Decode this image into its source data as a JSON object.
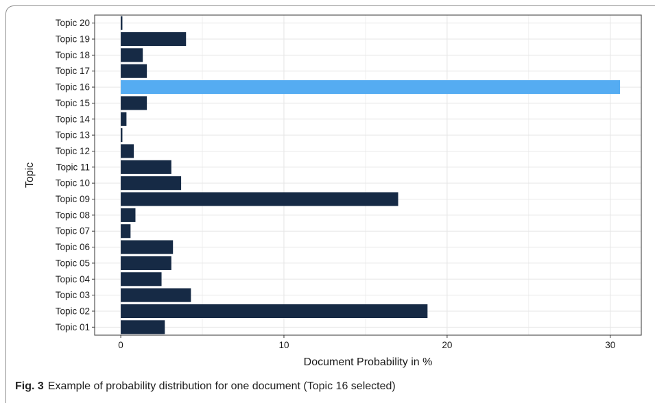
{
  "caption": {
    "label": "Fig. 3",
    "text": "Example of probability distribution for one document (Topic 16 selected)"
  },
  "colors": {
    "bar": "#162a45",
    "highlight": "#55acf2",
    "grid": "#e6e6e6",
    "panel_border": "#555555"
  },
  "chart_data": {
    "type": "bar",
    "orientation": "horizontal",
    "xlabel": "Document Probability in %",
    "ylabel": "Topic",
    "xlim": [
      -1.6,
      31.9
    ],
    "xticks": [
      0,
      10,
      20,
      30
    ],
    "grid": true,
    "highlighted": "Topic 16",
    "categories": [
      "Topic 01",
      "Topic 02",
      "Topic 03",
      "Topic 04",
      "Topic 05",
      "Topic 06",
      "Topic 07",
      "Topic 08",
      "Topic 09",
      "Topic 10",
      "Topic 11",
      "Topic 12",
      "Topic 13",
      "Topic 14",
      "Topic 15",
      "Topic 16",
      "Topic 17",
      "Topic 18",
      "Topic 19",
      "Topic 20"
    ],
    "values": [
      2.7,
      18.8,
      4.3,
      2.5,
      3.1,
      3.2,
      0.6,
      0.9,
      17.0,
      3.7,
      3.1,
      0.8,
      0.1,
      0.35,
      1.6,
      30.6,
      1.6,
      1.35,
      4.0,
      0.1
    ]
  }
}
